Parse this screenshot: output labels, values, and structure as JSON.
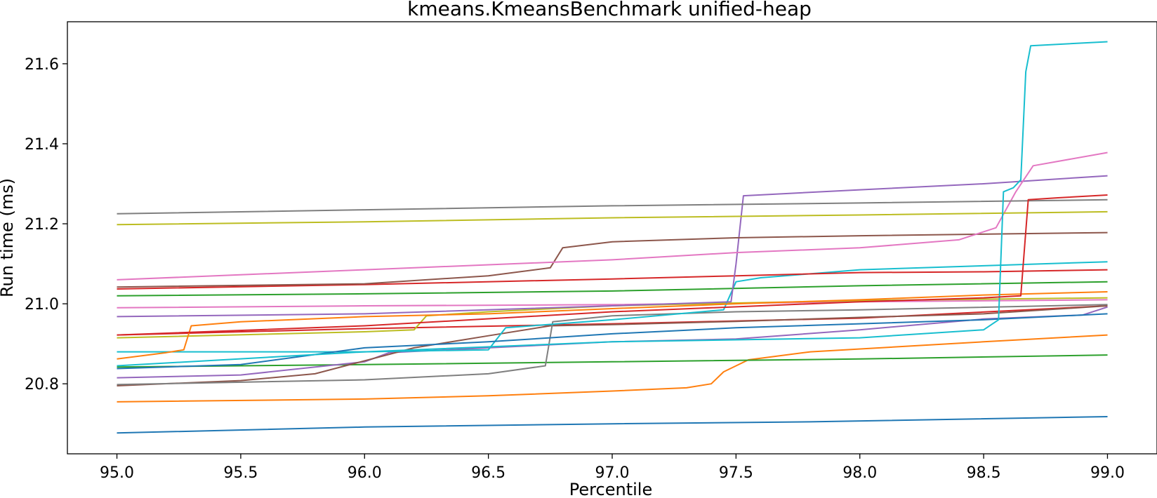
{
  "chart_data": {
    "type": "line",
    "title": "kmeans.KmeansBenchmark unified-heap",
    "xlabel": "Percentile",
    "ylabel": "Run time (ms)",
    "xlim": [
      94.8,
      99.2
    ],
    "ylim": [
      20.625,
      21.705
    ],
    "xticks": [
      95.0,
      95.5,
      96.0,
      96.5,
      97.0,
      97.5,
      98.0,
      98.5,
      99.0
    ],
    "xtick_labels": [
      "95.0",
      "95.5",
      "96.0",
      "96.5",
      "97.0",
      "97.5",
      "98.0",
      "98.5",
      "99.0"
    ],
    "yticks": [
      20.8,
      21.0,
      21.2,
      21.4,
      21.6
    ],
    "ytick_labels": [
      "20.8",
      "21.0",
      "21.2",
      "21.4",
      "21.6"
    ],
    "grid": false,
    "legend": "none",
    "series": [
      {
        "color": "#1f77b4",
        "points": [
          [
            95.0,
            20.677
          ],
          [
            96.0,
            20.692
          ],
          [
            97.0,
            20.7
          ],
          [
            97.8,
            20.705
          ],
          [
            99.0,
            20.718
          ]
        ]
      },
      {
        "color": "#ff7f0e",
        "points": [
          [
            95.0,
            20.755
          ],
          [
            96.0,
            20.762
          ],
          [
            96.5,
            20.77
          ],
          [
            97.0,
            20.782
          ],
          [
            97.3,
            20.79
          ],
          [
            97.4,
            20.8
          ],
          [
            97.45,
            20.83
          ],
          [
            97.55,
            20.86
          ],
          [
            97.8,
            20.88
          ],
          [
            98.5,
            20.905
          ],
          [
            99.0,
            20.922
          ]
        ]
      },
      {
        "color": "#2ca02c",
        "points": [
          [
            95.0,
            20.842
          ],
          [
            96.0,
            20.848
          ],
          [
            97.0,
            20.855
          ],
          [
            98.0,
            20.862
          ],
          [
            99.0,
            20.872
          ]
        ]
      },
      {
        "color": "#d62728",
        "points": [
          [
            95.0,
            20.922
          ],
          [
            96.0,
            20.938
          ],
          [
            97.0,
            20.95
          ],
          [
            98.0,
            20.964
          ],
          [
            99.0,
            20.995
          ]
        ]
      },
      {
        "color": "#9467bd",
        "points": [
          [
            95.0,
            20.815
          ],
          [
            95.5,
            20.822
          ],
          [
            96.0,
            20.855
          ],
          [
            96.1,
            20.878
          ],
          [
            96.5,
            20.89
          ],
          [
            97.0,
            20.905
          ],
          [
            97.5,
            20.912
          ],
          [
            98.0,
            20.935
          ],
          [
            98.5,
            20.962
          ],
          [
            98.9,
            20.972
          ],
          [
            99.0,
            20.992
          ]
        ]
      },
      {
        "color": "#8c564b",
        "points": [
          [
            95.0,
            20.795
          ],
          [
            95.5,
            20.808
          ],
          [
            95.8,
            20.825
          ],
          [
            96.2,
            20.89
          ],
          [
            96.5,
            20.92
          ],
          [
            96.75,
            20.945
          ],
          [
            97.0,
            20.948
          ],
          [
            97.5,
            20.956
          ],
          [
            98.0,
            20.966
          ],
          [
            98.5,
            20.975
          ],
          [
            99.0,
            20.995
          ]
        ]
      },
      {
        "color": "#e377c2",
        "points": [
          [
            95.0,
            20.99
          ],
          [
            96.0,
            20.995
          ],
          [
            97.0,
            20.998
          ],
          [
            98.0,
            21.005
          ],
          [
            99.0,
            21.01
          ]
        ]
      },
      {
        "color": "#7f7f7f",
        "points": [
          [
            95.0,
            20.798
          ],
          [
            96.0,
            20.81
          ],
          [
            96.5,
            20.825
          ],
          [
            96.73,
            20.845
          ],
          [
            96.76,
            20.955
          ],
          [
            97.0,
            20.97
          ],
          [
            97.5,
            20.98
          ],
          [
            98.0,
            20.985
          ],
          [
            99.0,
            20.998
          ]
        ]
      },
      {
        "color": "#bcbd22",
        "points": [
          [
            95.0,
            20.915
          ],
          [
            96.0,
            20.93
          ],
          [
            96.2,
            20.935
          ],
          [
            96.25,
            20.97
          ],
          [
            96.5,
            20.98
          ],
          [
            97.0,
            20.995
          ],
          [
            97.5,
            21.002
          ],
          [
            98.0,
            21.008
          ],
          [
            99.0,
            21.015
          ]
        ]
      },
      {
        "color": "#17becf",
        "points": [
          [
            95.0,
            20.88
          ],
          [
            96.0,
            20.88
          ],
          [
            96.5,
            20.885
          ],
          [
            96.57,
            20.94
          ],
          [
            97.0,
            20.96
          ],
          [
            97.45,
            20.985
          ],
          [
            97.5,
            21.055
          ],
          [
            97.6,
            21.065
          ],
          [
            98.0,
            21.085
          ],
          [
            98.5,
            21.095
          ],
          [
            99.0,
            21.105
          ]
        ]
      },
      {
        "color": "#1f77b4",
        "points": [
          [
            95.0,
            20.838
          ],
          [
            95.5,
            20.848
          ],
          [
            96.0,
            20.89
          ],
          [
            96.5,
            20.905
          ],
          [
            97.0,
            20.925
          ],
          [
            97.5,
            20.94
          ],
          [
            98.0,
            20.95
          ],
          [
            98.5,
            20.96
          ],
          [
            99.0,
            20.975
          ]
        ]
      },
      {
        "color": "#ff7f0e",
        "points": [
          [
            95.0,
            20.862
          ],
          [
            95.2,
            20.878
          ],
          [
            95.27,
            20.885
          ],
          [
            95.3,
            20.945
          ],
          [
            95.5,
            20.955
          ],
          [
            96.0,
            20.968
          ],
          [
            96.5,
            20.975
          ],
          [
            97.0,
            20.988
          ],
          [
            97.5,
            21.0
          ],
          [
            98.0,
            21.01
          ],
          [
            98.5,
            21.022
          ],
          [
            99.0,
            21.03
          ]
        ]
      },
      {
        "color": "#2ca02c",
        "points": [
          [
            95.0,
            21.02
          ],
          [
            96.0,
            21.025
          ],
          [
            97.0,
            21.032
          ],
          [
            98.0,
            21.045
          ],
          [
            99.0,
            21.055
          ]
        ]
      },
      {
        "color": "#d62728",
        "points": [
          [
            95.0,
            21.037
          ],
          [
            96.0,
            21.048
          ],
          [
            97.0,
            21.062
          ],
          [
            97.5,
            21.07
          ],
          [
            98.0,
            21.078
          ],
          [
            98.5,
            21.08
          ],
          [
            99.0,
            21.085
          ]
        ]
      },
      {
        "color": "#9467bd",
        "points": [
          [
            95.0,
            20.968
          ],
          [
            96.0,
            20.975
          ],
          [
            97.0,
            20.995
          ],
          [
            97.48,
            21.005
          ],
          [
            97.5,
            21.1
          ],
          [
            97.53,
            21.27
          ],
          [
            98.0,
            21.285
          ],
          [
            98.5,
            21.3
          ],
          [
            99.0,
            21.32
          ]
        ]
      },
      {
        "color": "#8c564b",
        "points": [
          [
            95.0,
            21.042
          ],
          [
            96.0,
            21.05
          ],
          [
            96.5,
            21.07
          ],
          [
            96.75,
            21.09
          ],
          [
            96.8,
            21.14
          ],
          [
            97.0,
            21.155
          ],
          [
            97.5,
            21.165
          ],
          [
            98.0,
            21.17
          ],
          [
            99.0,
            21.178
          ]
        ]
      },
      {
        "color": "#e377c2",
        "points": [
          [
            95.0,
            21.06
          ],
          [
            96.0,
            21.085
          ],
          [
            97.0,
            21.11
          ],
          [
            97.5,
            21.128
          ],
          [
            98.0,
            21.14
          ],
          [
            98.4,
            21.16
          ],
          [
            98.55,
            21.19
          ],
          [
            98.63,
            21.28
          ],
          [
            98.7,
            21.345
          ],
          [
            99.0,
            21.378
          ]
        ]
      },
      {
        "color": "#7f7f7f",
        "points": [
          [
            95.0,
            21.225
          ],
          [
            96.0,
            21.235
          ],
          [
            97.0,
            21.245
          ],
          [
            98.0,
            21.252
          ],
          [
            99.0,
            21.26
          ]
        ]
      },
      {
        "color": "#bcbd22",
        "points": [
          [
            95.0,
            21.198
          ],
          [
            96.0,
            21.205
          ],
          [
            97.0,
            21.215
          ],
          [
            98.0,
            21.222
          ],
          [
            99.0,
            21.23
          ]
        ]
      },
      {
        "color": "#17becf",
        "points": [
          [
            95.0,
            20.845
          ],
          [
            96.0,
            20.88
          ],
          [
            97.0,
            20.905
          ],
          [
            98.0,
            20.915
          ],
          [
            98.5,
            20.935
          ],
          [
            98.56,
            20.96
          ],
          [
            98.58,
            21.28
          ],
          [
            98.62,
            21.29
          ],
          [
            98.65,
            21.31
          ],
          [
            98.67,
            21.58
          ],
          [
            98.69,
            21.645
          ],
          [
            99.0,
            21.655
          ]
        ]
      },
      {
        "color": "#d62728",
        "points": [
          [
            95.0,
            20.922
          ],
          [
            96.0,
            20.945
          ],
          [
            97.0,
            20.98
          ],
          [
            98.0,
            21.005
          ],
          [
            98.5,
            21.015
          ],
          [
            98.65,
            21.02
          ],
          [
            98.68,
            21.26
          ],
          [
            98.8,
            21.265
          ],
          [
            99.0,
            21.272
          ]
        ]
      }
    ]
  }
}
